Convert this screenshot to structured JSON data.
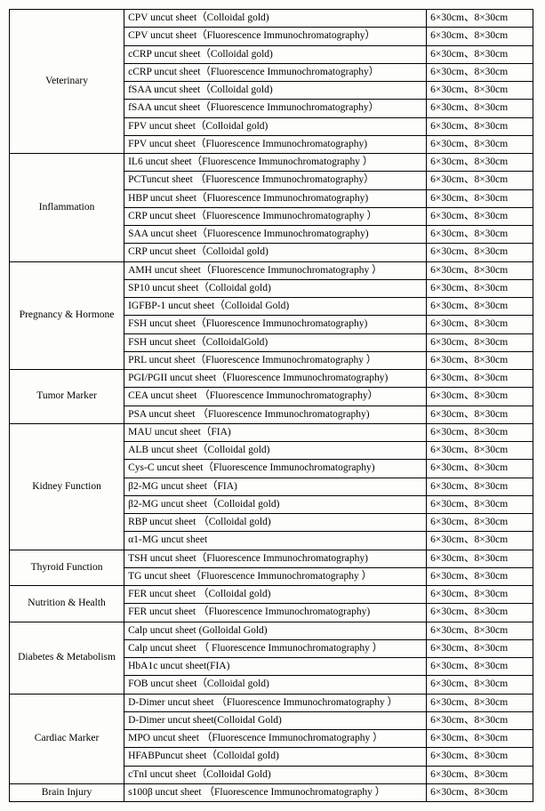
{
  "size_default": "6×30cm、8×30cm",
  "groups": [
    {
      "category": "Veterinary",
      "rows": [
        "CPV uncut sheet（Colloidal gold)",
        "CPV uncut sheet（Fluorescence Immunochromatography）",
        "cCRP uncut sheet（Colloidal gold)",
        "cCRP uncut sheet（Fluorescence Immunochromatography）",
        "fSAA uncut sheet（Colloidal gold)",
        "fSAA uncut sheet（Fluorescence Immunochromatography）",
        "FPV uncut sheet（Colloidal gold)",
        "FPV uncut sheet（Fluorescence Immunochromatography)"
      ]
    },
    {
      "category": "Inflammation",
      "rows": [
        "IL6 uncut sheet（Fluorescence Immunochromatography ）",
        "PCTuncut sheet （Fluorescence Immunochromatography）",
        "HBP uncut sheet（Fluorescence Immunochromatography)",
        "CRP uncut sheet（Fluorescence Immunochromatography ）",
        "SAA uncut sheet（Fluorescence Immunochromatography)",
        "CRP uncut sheet（Colloidal gold)"
      ]
    },
    {
      "category": "Pregnancy & Hormone",
      "rows": [
        "AMH uncut sheet（Fluorescence Immunochromatography ）",
        "SP10 uncut sheet（Colloidal gold)",
        "IGFBP-1 uncut sheet（Colloidal Gold)",
        "FSH uncut sheet（Fluorescence Immunochromatography)",
        "FSH uncut sheet（ColloidalGold)",
        "PRL uncut sheet（Fluorescence Immunochromatography ）"
      ]
    },
    {
      "category": "Tumor Marker",
      "rows": [
        "PGI/PGII uncut sheet（Fluorescence Immunochromatography)",
        "CEA uncut sheet （Fluorescence Immunochromatography）",
        "PSA uncut sheet （Fluorescence Immunochromatography)"
      ]
    },
    {
      "category": "Kidney Function",
      "rows": [
        "MAU uncut sheet（FIA)",
        "ALB uncut sheet（Colloidal gold)",
        "Cys-C uncut sheet（Fluorescence Immunochromatography)",
        "β2-MG uncut sheet（FIA)",
        "β2-MG uncut sheet（Colloidal gold)",
        "RBP uncut sheet （Colloidal gold)",
        "α1-MG uncut sheet"
      ]
    },
    {
      "category": "Thyroid Function",
      "rows": [
        "TSH uncut sheet（Fluorescence Immunochromatography)",
        "TG uncut sheet（Fluorescence Immunochromatography ）"
      ]
    },
    {
      "category": "Nutrition & Health",
      "rows": [
        "FER uncut sheet （Colloidal gold)",
        "FER uncut sheet （Fluorescence Immunochromatography)"
      ]
    },
    {
      "category": "Diabetes & Metabolism",
      "rows": [
        "Calp uncut sheet (Golloidal Gold)",
        "Calp uncut sheet （ Fluorescence Immunochromatography ）",
        "HbA1c uncut sheet(FIA)",
        "FOB uncut sheet（Colloidal gold)"
      ]
    },
    {
      "category": "Cardiac Marker",
      "rows": [
        "D-Dimer uncut sheet （Fluorescence Immunochromatography ）",
        "D-Dimer uncut sheet(Colloidal Gold)",
        "MPO uncut sheet （Fluorescence Immunochromatography ）",
        "HFABPuncut sheet（Colloidal gold)",
        "cTnI  uncut sheet（Colloidal Gold)"
      ]
    },
    {
      "category": "Brain Injury",
      "rows": [
        "s100β  uncut sheet （Fluorescence Immunochromatography ）"
      ]
    }
  ]
}
